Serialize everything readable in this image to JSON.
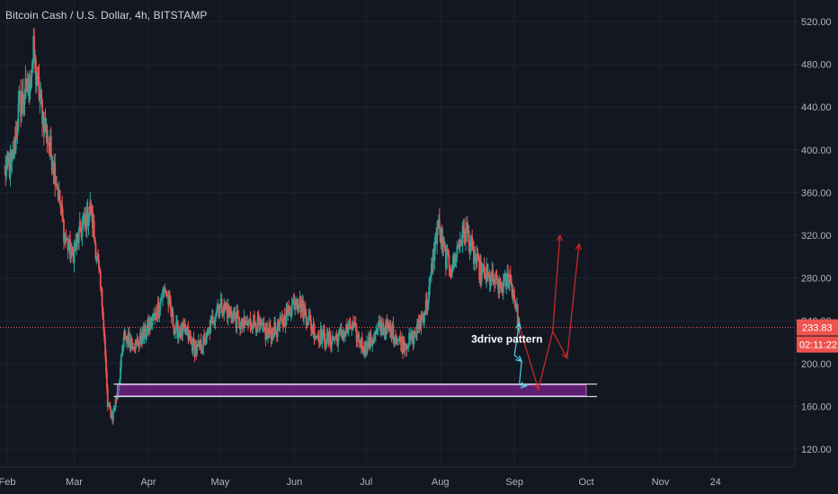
{
  "chart_data": {
    "type": "candlestick",
    "title": "Bitcoin Cash / U.S. Dollar, 4h, BITSTAMP",
    "ylim": [
      100,
      540
    ],
    "y_ticks": [
      "520.00",
      "480.00",
      "440.00",
      "400.00",
      "360.00",
      "320.00",
      "280.00",
      "240.00",
      "200.00",
      "160.00",
      "120.00"
    ],
    "y_tick_values": [
      520,
      480,
      440,
      400,
      360,
      320,
      280,
      240,
      200,
      160,
      120
    ],
    "x_ticks": [
      "Feb",
      "Mar",
      "Apr",
      "May",
      "Jun",
      "Jul",
      "Aug",
      "Sep",
      "Oct",
      "Nov",
      "24"
    ],
    "x_tick_dates": [
      "2023-02-01",
      "2023-03-01",
      "2023-04-01",
      "2023-05-01",
      "2023-06-01",
      "2023-07-01",
      "2023-08-01",
      "2023-09-01",
      "2023-10-01",
      "2023-11-01",
      "2023-11-24"
    ],
    "x_range": [
      "2023-01-31",
      "2023-12-05"
    ],
    "last_price": "233.83",
    "last_price_value": 233.83,
    "countdown": "02:11:22",
    "price_path": [
      [
        "2023-01-31",
        380
      ],
      [
        "2023-02-03",
        385
      ],
      [
        "2023-02-06",
        440
      ],
      [
        "2023-02-10",
        460
      ],
      [
        "2023-02-12",
        490
      ],
      [
        "2023-02-13",
        470
      ],
      [
        "2023-02-17",
        420
      ],
      [
        "2023-02-21",
        380
      ],
      [
        "2023-02-25",
        320
      ],
      [
        "2023-02-28",
        300
      ],
      [
        "2023-03-03",
        320
      ],
      [
        "2023-03-08",
        345
      ],
      [
        "2023-03-11",
        290
      ],
      [
        "2023-03-13",
        250
      ],
      [
        "2023-03-15",
        160
      ],
      [
        "2023-03-17",
        150
      ],
      [
        "2023-03-19",
        172
      ],
      [
        "2023-03-22",
        226
      ],
      [
        "2023-03-27",
        218
      ],
      [
        "2023-03-31",
        230
      ],
      [
        "2023-04-04",
        245
      ],
      [
        "2023-04-08",
        272
      ],
      [
        "2023-04-12",
        232
      ],
      [
        "2023-04-17",
        228
      ],
      [
        "2023-04-21",
        212
      ],
      [
        "2023-04-25",
        222
      ],
      [
        "2023-04-30",
        255
      ],
      [
        "2023-05-05",
        248
      ],
      [
        "2023-05-10",
        235
      ],
      [
        "2023-05-15",
        240
      ],
      [
        "2023-05-20",
        228
      ],
      [
        "2023-05-25",
        232
      ],
      [
        "2023-05-30",
        250
      ],
      [
        "2023-06-02",
        262
      ],
      [
        "2023-06-06",
        245
      ],
      [
        "2023-06-10",
        228
      ],
      [
        "2023-06-15",
        222
      ],
      [
        "2023-06-20",
        225
      ],
      [
        "2023-06-25",
        235
      ],
      [
        "2023-06-30",
        215
      ],
      [
        "2023-07-03",
        220
      ],
      [
        "2023-07-07",
        235
      ],
      [
        "2023-07-12",
        230
      ],
      [
        "2023-07-16",
        218
      ],
      [
        "2023-07-20",
        222
      ],
      [
        "2023-07-24",
        240
      ],
      [
        "2023-07-27",
        260
      ],
      [
        "2023-07-29",
        300
      ],
      [
        "2023-07-31",
        330
      ],
      [
        "2023-08-03",
        300
      ],
      [
        "2023-08-06",
        290
      ],
      [
        "2023-08-09",
        315
      ],
      [
        "2023-08-12",
        325
      ],
      [
        "2023-08-15",
        300
      ],
      [
        "2023-08-18",
        285
      ],
      [
        "2023-08-22",
        280
      ],
      [
        "2023-08-26",
        270
      ],
      [
        "2023-08-30",
        282
      ],
      [
        "2023-09-01",
        262
      ],
      [
        "2023-09-02",
        248
      ],
      [
        "2023-09-03",
        233.83
      ]
    ],
    "annotations": [
      {
        "type": "text",
        "label": "3drive pattern",
        "x": "2023-09-13",
        "y": 218
      }
    ],
    "support_zone": {
      "from": "2023-03-19",
      "to": "2023-10-01",
      "y_low": 170,
      "y_high": 180
    },
    "projection_path": [
      [
        "2023-09-03",
        235
      ],
      [
        "2023-09-11",
        176
      ],
      [
        "2023-09-17",
        230
      ],
      [
        "2023-09-23",
        205
      ],
      [
        "2023-09-28",
        312
      ],
      [
        "2023-09-30",
        312
      ]
    ],
    "projection_branch": [
      [
        "2023-09-17",
        230
      ],
      [
        "2023-09-20",
        320
      ]
    ],
    "drive_legs": [
      [
        [
          "2023-09-03",
          238
        ],
        [
          "2023-09-01",
          208
        ],
        [
          "2023-09-04",
          202
        ]
      ],
      [
        [
          "2023-09-04",
          202
        ],
        [
          "2023-09-03",
          180
        ],
        [
          "2023-09-06",
          179
        ]
      ]
    ]
  }
}
